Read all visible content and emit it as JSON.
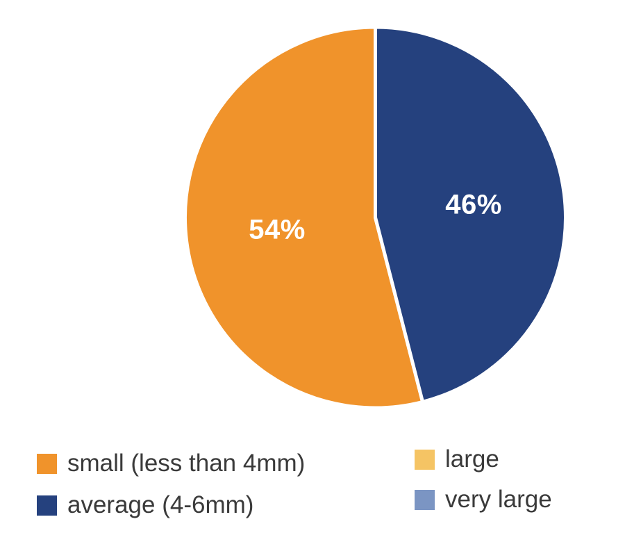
{
  "chart_data": {
    "type": "pie",
    "title": "",
    "categories": [
      "small (less than 4mm)",
      "average (4-6mm)",
      "large",
      "very large"
    ],
    "values": [
      54,
      46,
      0,
      0
    ],
    "unit": "%",
    "slice_labels": [
      "54%",
      "46%",
      "",
      ""
    ],
    "colors": [
      "#F0932B",
      "#25417E",
      "#F5C464",
      "#7B95C3"
    ],
    "label_color": "#FFFFFF",
    "start_angle_deg": 0,
    "direction": "counterclockwise",
    "separator_color": "#FFFFFF",
    "legend_position": "bottom"
  },
  "legend": {
    "items": [
      {
        "label": "small (less than 4mm)",
        "color": "#F0932B"
      },
      {
        "label": "average (4-6mm)",
        "color": "#25417E"
      },
      {
        "label": "large",
        "color": "#F5C464"
      },
      {
        "label": "very large",
        "color": "#7B95C3"
      }
    ]
  }
}
